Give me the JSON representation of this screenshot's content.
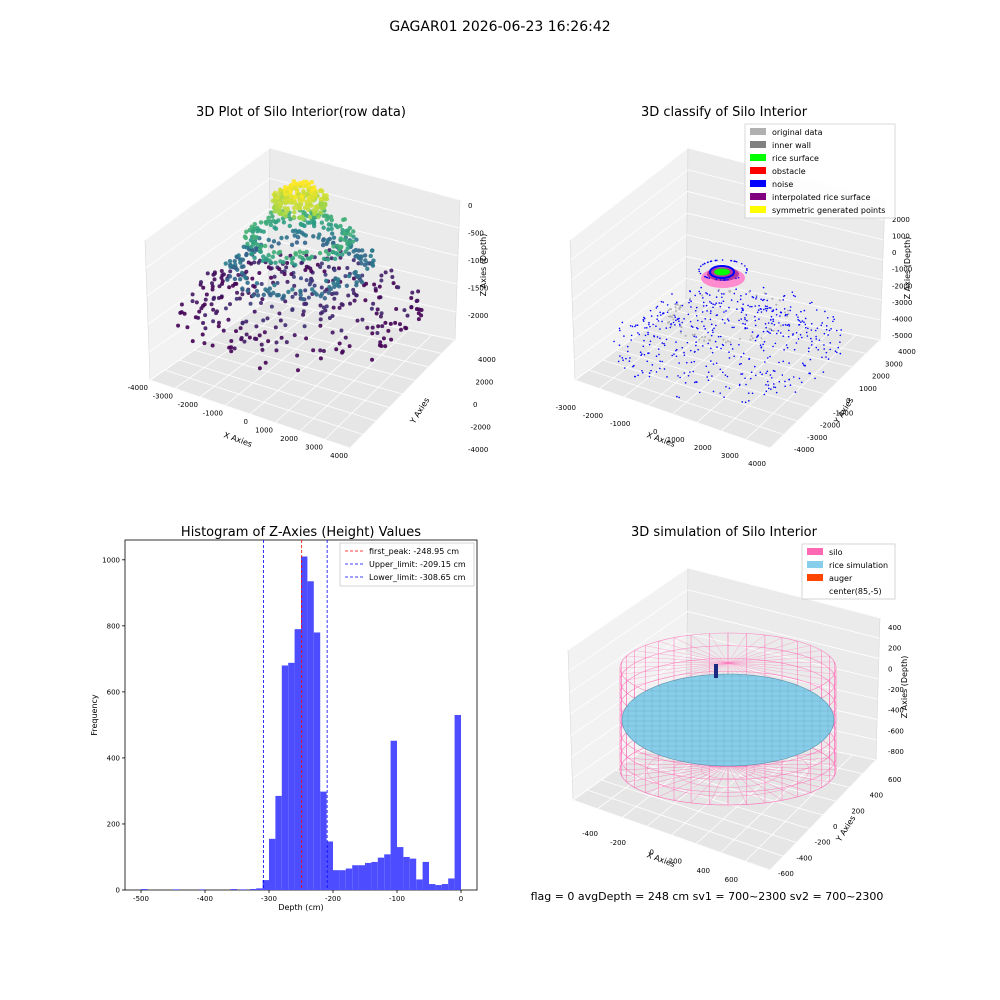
{
  "figure": {
    "suptitle": "GAGAR01 2026-06-23 16:26:42",
    "status_line": "flag = 0     avgDepth = 248 cm  sv1 = 700~2300  sv2 = 700~2300"
  },
  "chart_data": [
    {
      "type": "scatter",
      "projection": "3d",
      "title": "3D Plot of Silo Interior(row data)",
      "xlabel": "X Axies",
      "ylabel": "Y Axies",
      "zlabel": "Z Axies (Depth)",
      "xticks": [
        "-4000",
        "-3000",
        "-2000",
        "-1000",
        "0",
        "1000",
        "2000",
        "3000",
        "4000"
      ],
      "yticks": [
        "-4000",
        "-2000",
        "0",
        "2000",
        "4000"
      ],
      "zticks": [
        "0",
        "-500",
        "-1000",
        "-1500",
        "-2000"
      ],
      "xlim": [
        -4000,
        4000
      ],
      "ylim": [
        -4000,
        4000
      ],
      "zlim": [
        -2300,
        0
      ],
      "colormap": "viridis",
      "points": {
        "surface_ring_top": {
          "r": 700,
          "z": -200
        },
        "surface_ring_mid": {
          "r": 1400,
          "z": -900
        },
        "surface_ring_low": {
          "r": 1900,
          "z": -1400
        },
        "floor_scatter_radius": 3500,
        "floor_z": -2200
      }
    },
    {
      "type": "scatter",
      "projection": "3d",
      "title": "3D classify of Silo Interior",
      "xlabel": "X Axies",
      "ylabel": "Y Axies",
      "zlabel": "Z Axies (Depth)",
      "xticks": [
        "-3000",
        "-2000",
        "-1000",
        "0",
        "1000",
        "2000",
        "3000",
        "4000"
      ],
      "yticks": [
        "-4000",
        "-3000",
        "-2000",
        "-1000",
        "0",
        "1000",
        "2000",
        "3000",
        "4000"
      ],
      "zticks": [
        "2000",
        "1000",
        "0",
        "-1000",
        "-2000",
        "-3000",
        "-4000",
        "-5000"
      ],
      "xlim": [
        -3500,
        4000
      ],
      "ylim": [
        -4000,
        4000
      ],
      "zlim": [
        -5000,
        2000
      ],
      "legend_loc": "upper right",
      "legend": [
        {
          "label": "original data",
          "color": "#b0b0b0"
        },
        {
          "label": "inner wall",
          "color": "#808080"
        },
        {
          "label": "rice surface",
          "color": "#00ff00"
        },
        {
          "label": "obstacle",
          "color": "#ff0000"
        },
        {
          "label": "noise",
          "color": "#0000ff"
        },
        {
          "label": "interpolated rice surface",
          "color": "#800080"
        },
        {
          "label": "symmetric generated points",
          "color": "#ffff00"
        }
      ]
    },
    {
      "type": "bar",
      "title": "Histogram of Z-Axies (Height) Values",
      "xlabel": "Depth (cm)",
      "ylabel": "Frequency",
      "xlim": [
        -525,
        25
      ],
      "ylim": [
        0,
        1060
      ],
      "xticks": [
        -500,
        -400,
        -300,
        -200,
        -100,
        0
      ],
      "yticks": [
        0,
        200,
        400,
        600,
        800,
        1000
      ],
      "bar_color": "#4d4dff",
      "bin_width": 10,
      "bins": [
        {
          "x": -500,
          "v": 3
        },
        {
          "x": -450,
          "v": 2
        },
        {
          "x": -410,
          "v": 2
        },
        {
          "x": -360,
          "v": 3
        },
        {
          "x": -345,
          "v": 2
        },
        {
          "x": -330,
          "v": 3
        },
        {
          "x": -320,
          "v": 5
        },
        {
          "x": -310,
          "v": 30
        },
        {
          "x": -300,
          "v": 155
        },
        {
          "x": -290,
          "v": 285
        },
        {
          "x": -280,
          "v": 680
        },
        {
          "x": -270,
          "v": 688
        },
        {
          "x": -260,
          "v": 790
        },
        {
          "x": -250,
          "v": 1010
        },
        {
          "x": -240,
          "v": 935
        },
        {
          "x": -230,
          "v": 780
        },
        {
          "x": -220,
          "v": 298
        },
        {
          "x": -210,
          "v": 147
        },
        {
          "x": -200,
          "v": 60
        },
        {
          "x": -190,
          "v": 60
        },
        {
          "x": -180,
          "v": 65
        },
        {
          "x": -170,
          "v": 75
        },
        {
          "x": -160,
          "v": 75
        },
        {
          "x": -150,
          "v": 82
        },
        {
          "x": -140,
          "v": 85
        },
        {
          "x": -130,
          "v": 98
        },
        {
          "x": -120,
          "v": 108
        },
        {
          "x": -110,
          "v": 452
        },
        {
          "x": -100,
          "v": 130
        },
        {
          "x": -90,
          "v": 100
        },
        {
          "x": -80,
          "v": 95
        },
        {
          "x": -70,
          "v": 32
        },
        {
          "x": -60,
          "v": 85
        },
        {
          "x": -50,
          "v": 18
        },
        {
          "x": -40,
          "v": 15
        },
        {
          "x": -30,
          "v": 18
        },
        {
          "x": -20,
          "v": 35
        },
        {
          "x": -10,
          "v": 530
        }
      ],
      "vlines": [
        {
          "x": -248.95,
          "color": "#ff0000",
          "label": "first_peak: -248.95 cm"
        },
        {
          "x": -209.15,
          "color": "#0000ff",
          "label": "Upper_limit: -209.15 cm"
        },
        {
          "x": -308.65,
          "color": "#0000ff",
          "label": "Lower_limit: -308.65 cm"
        }
      ],
      "legend_loc": "upper right"
    },
    {
      "type": "surface",
      "projection": "3d",
      "title": "3D simulation of Silo Interior",
      "xlabel": "X Axies",
      "ylabel": "Y Axies",
      "zlabel": "Z Axies (Depth)",
      "xticks": [
        "-400",
        "-200",
        "0",
        "200",
        "400",
        "600"
      ],
      "yticks": [
        "-600",
        "-400",
        "-200",
        "0",
        "200",
        "400",
        "600"
      ],
      "zticks": [
        "400",
        "200",
        "0",
        "-200",
        "-400",
        "-600",
        "-800"
      ],
      "xlim": [
        -550,
        700
      ],
      "ylim": [
        -700,
        700
      ],
      "zlim": [
        -900,
        450
      ],
      "silo_radius": 600,
      "silo_top_z": 0,
      "silo_bottom_z": -900,
      "rice_z": -300,
      "legend_loc": "upper right",
      "legend": [
        {
          "label": "silo",
          "color": "#ff69b4"
        },
        {
          "label": "rice simulation",
          "color": "#87ceeb"
        },
        {
          "label": "auger",
          "color": "#ff4500"
        },
        {
          "label": "center(85,-5)",
          "color": "#ffffff"
        }
      ]
    }
  ]
}
